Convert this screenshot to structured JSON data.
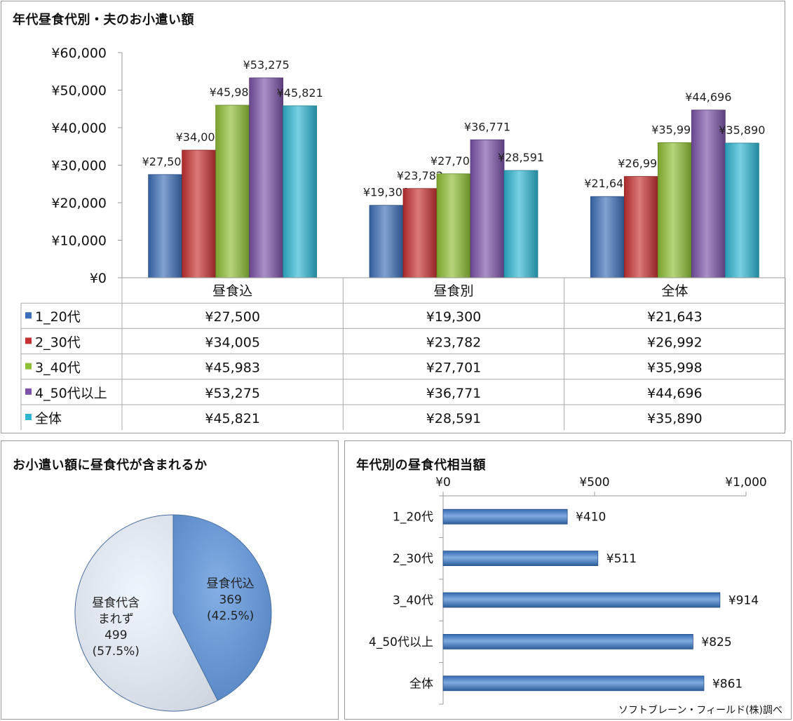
{
  "main_chart": {
    "title": "年代昼食代別・夫のお小遣い額",
    "chart_data": {
      "type": "bar",
      "categories": [
        "昼食込",
        "昼食別",
        "全体"
      ],
      "ylim": [
        0,
        60000
      ],
      "yticks": [
        "¥0",
        "¥10,000",
        "¥20,000",
        "¥30,000",
        "¥40,000",
        "¥50,000",
        "¥60,000"
      ],
      "grid": false,
      "legend_placement": "data-table",
      "series": [
        {
          "name": "1_20代",
          "color": "#3c6fb8",
          "values": [
            27500,
            19300,
            21643
          ],
          "labels": [
            "¥27,500",
            "¥19,300",
            "¥21,643"
          ]
        },
        {
          "name": "2_30代",
          "color": "#c73131",
          "values": [
            34005,
            23782,
            26992
          ],
          "labels": [
            "¥34,005",
            "¥23,782",
            "¥26,992"
          ]
        },
        {
          "name": "3_40代",
          "color": "#8fbf34",
          "values": [
            45983,
            27701,
            35998
          ],
          "labels": [
            "¥45,983",
            "¥27,701",
            "¥35,998"
          ]
        },
        {
          "name": "4_50代以上",
          "color": "#7b52a8",
          "values": [
            53275,
            36771,
            44696
          ],
          "labels": [
            "¥53,275",
            "¥36,771",
            "¥44,696"
          ]
        },
        {
          "name": "全体",
          "color": "#2fb6d2",
          "values": [
            45821,
            28591,
            35890
          ],
          "labels": [
            "¥45,821",
            "¥28,591",
            "¥35,890"
          ]
        }
      ]
    }
  },
  "pie_chart": {
    "title": "お小遣い額に昼食代が含まれるか",
    "chart_data": {
      "type": "pie",
      "slices": [
        {
          "label_lines": [
            "昼食代込",
            "369",
            "(42.5%)"
          ],
          "value": 369,
          "percent": 42.5,
          "color": "#5b93db"
        },
        {
          "label_lines": [
            "昼食代含",
            "まれず",
            "499",
            "(57.5%)"
          ],
          "value": 499,
          "percent": 57.5,
          "color": "#eaf2fc"
        }
      ]
    }
  },
  "hbar_chart": {
    "title": "年代別の昼食代相当額",
    "chart_data": {
      "type": "bar",
      "orientation": "horizontal",
      "categories": [
        "1_20代",
        "2_30代",
        "3_40代",
        "4_50代以上",
        "全体"
      ],
      "values": [
        410,
        511,
        914,
        825,
        861
      ],
      "labels": [
        "¥410",
        "¥511",
        "¥914",
        "¥825",
        "¥861"
      ],
      "xlim": [
        0,
        1000
      ],
      "xticks": [
        "¥0",
        "¥500",
        "¥1,000"
      ],
      "color": "#3c7dd0"
    }
  },
  "footnote": "ソフトブレーン・フィールド(株)調べ"
}
